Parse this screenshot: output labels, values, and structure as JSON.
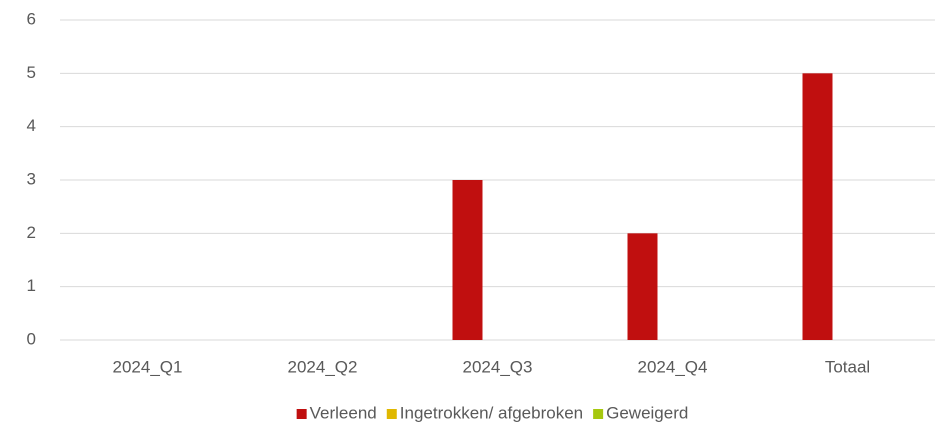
{
  "chart_data": {
    "type": "bar",
    "categories": [
      "2024_Q1",
      "2024_Q2",
      "2024_Q3",
      "2024_Q4",
      "Totaal"
    ],
    "series": [
      {
        "name": "Verleend",
        "color": "#c00f0f",
        "values": [
          0,
          0,
          3,
          2,
          5
        ]
      },
      {
        "name": "Ingetrokken/ afgebroken",
        "color": "#e0b800",
        "values": [
          0,
          0,
          0,
          0,
          0
        ]
      },
      {
        "name": "Geweigerd",
        "color": "#a6c80f",
        "values": [
          0,
          0,
          0,
          0,
          0
        ]
      }
    ],
    "ylim": [
      0,
      6
    ],
    "yticks": [
      0,
      1,
      2,
      3,
      4,
      5,
      6
    ],
    "grid": true,
    "legend": "bottom"
  }
}
